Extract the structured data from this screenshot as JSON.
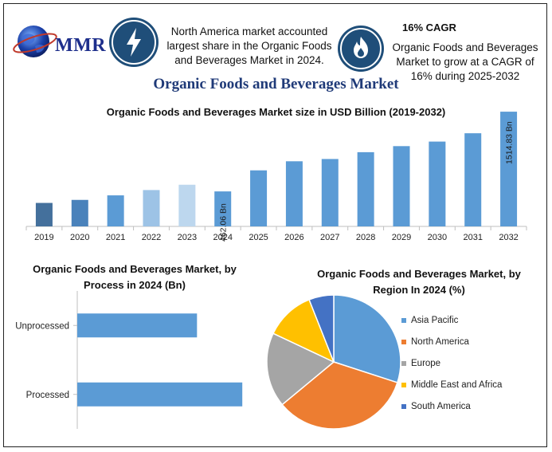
{
  "header": {
    "logo_text": "MMR",
    "fact1_text": "North America market accounted largest share in the Organic Foods and Beverages Market in 2024.",
    "fact2_title": "16% CAGR",
    "fact2_text": "Organic Foods and Beverages Market to grow at a CAGR of 16% during 2025-2032",
    "icon_color": "#1f4e79"
  },
  "main_title": "Organic Foods and Beverages Market",
  "chart_data": [
    {
      "type": "bar",
      "title": "Organic Foods and Beverages Market size in USD Billion (2019-2032)",
      "categories": [
        "2019",
        "2020",
        "2021",
        "2022",
        "2023",
        "2024",
        "2025",
        "2026",
        "2027",
        "2028",
        "2029",
        "2030",
        "2031",
        "2032"
      ],
      "values": [
        310,
        350,
        410,
        480,
        550,
        462.06,
        740,
        860,
        890,
        980,
        1060,
        1120,
        1230,
        1514.83
      ],
      "colors": [
        "#44709c",
        "#4a82bb",
        "#5b9bd5",
        "#9dc3e6",
        "#bdd7ee",
        "#5b9bd5",
        "#5b9bd5",
        "#5b9bd5",
        "#5b9bd5",
        "#5b9bd5",
        "#5b9bd5",
        "#5b9bd5",
        "#5b9bd5",
        "#5b9bd5"
      ],
      "data_labels": [
        {
          "category": "2024",
          "text": "462.06 Bn"
        },
        {
          "category": "2032",
          "text": "1514.83 Bn"
        }
      ],
      "ylim": [
        0,
        1600
      ],
      "grid": false
    },
    {
      "type": "bar",
      "orientation": "horizontal",
      "title": "Organic Foods and Beverages Market, by Process in 2024 (Bn)",
      "categories": [
        "Unprocessed",
        "Processed"
      ],
      "values": [
        185,
        255
      ],
      "color": "#5b9bd5",
      "xlim": [
        0,
        400
      ]
    },
    {
      "type": "pie",
      "title": "Organic Foods and Beverages Market, by Region In 2024 (%)",
      "categories": [
        "Asia Pacific",
        "North America",
        "Europe",
        "Middle East and Africa",
        "South America"
      ],
      "values": [
        30,
        34,
        18,
        12,
        6
      ],
      "colors": [
        "#5b9bd5",
        "#ed7d31",
        "#a5a5a5",
        "#ffc000",
        "#4472c4"
      ],
      "legend": "right"
    }
  ]
}
